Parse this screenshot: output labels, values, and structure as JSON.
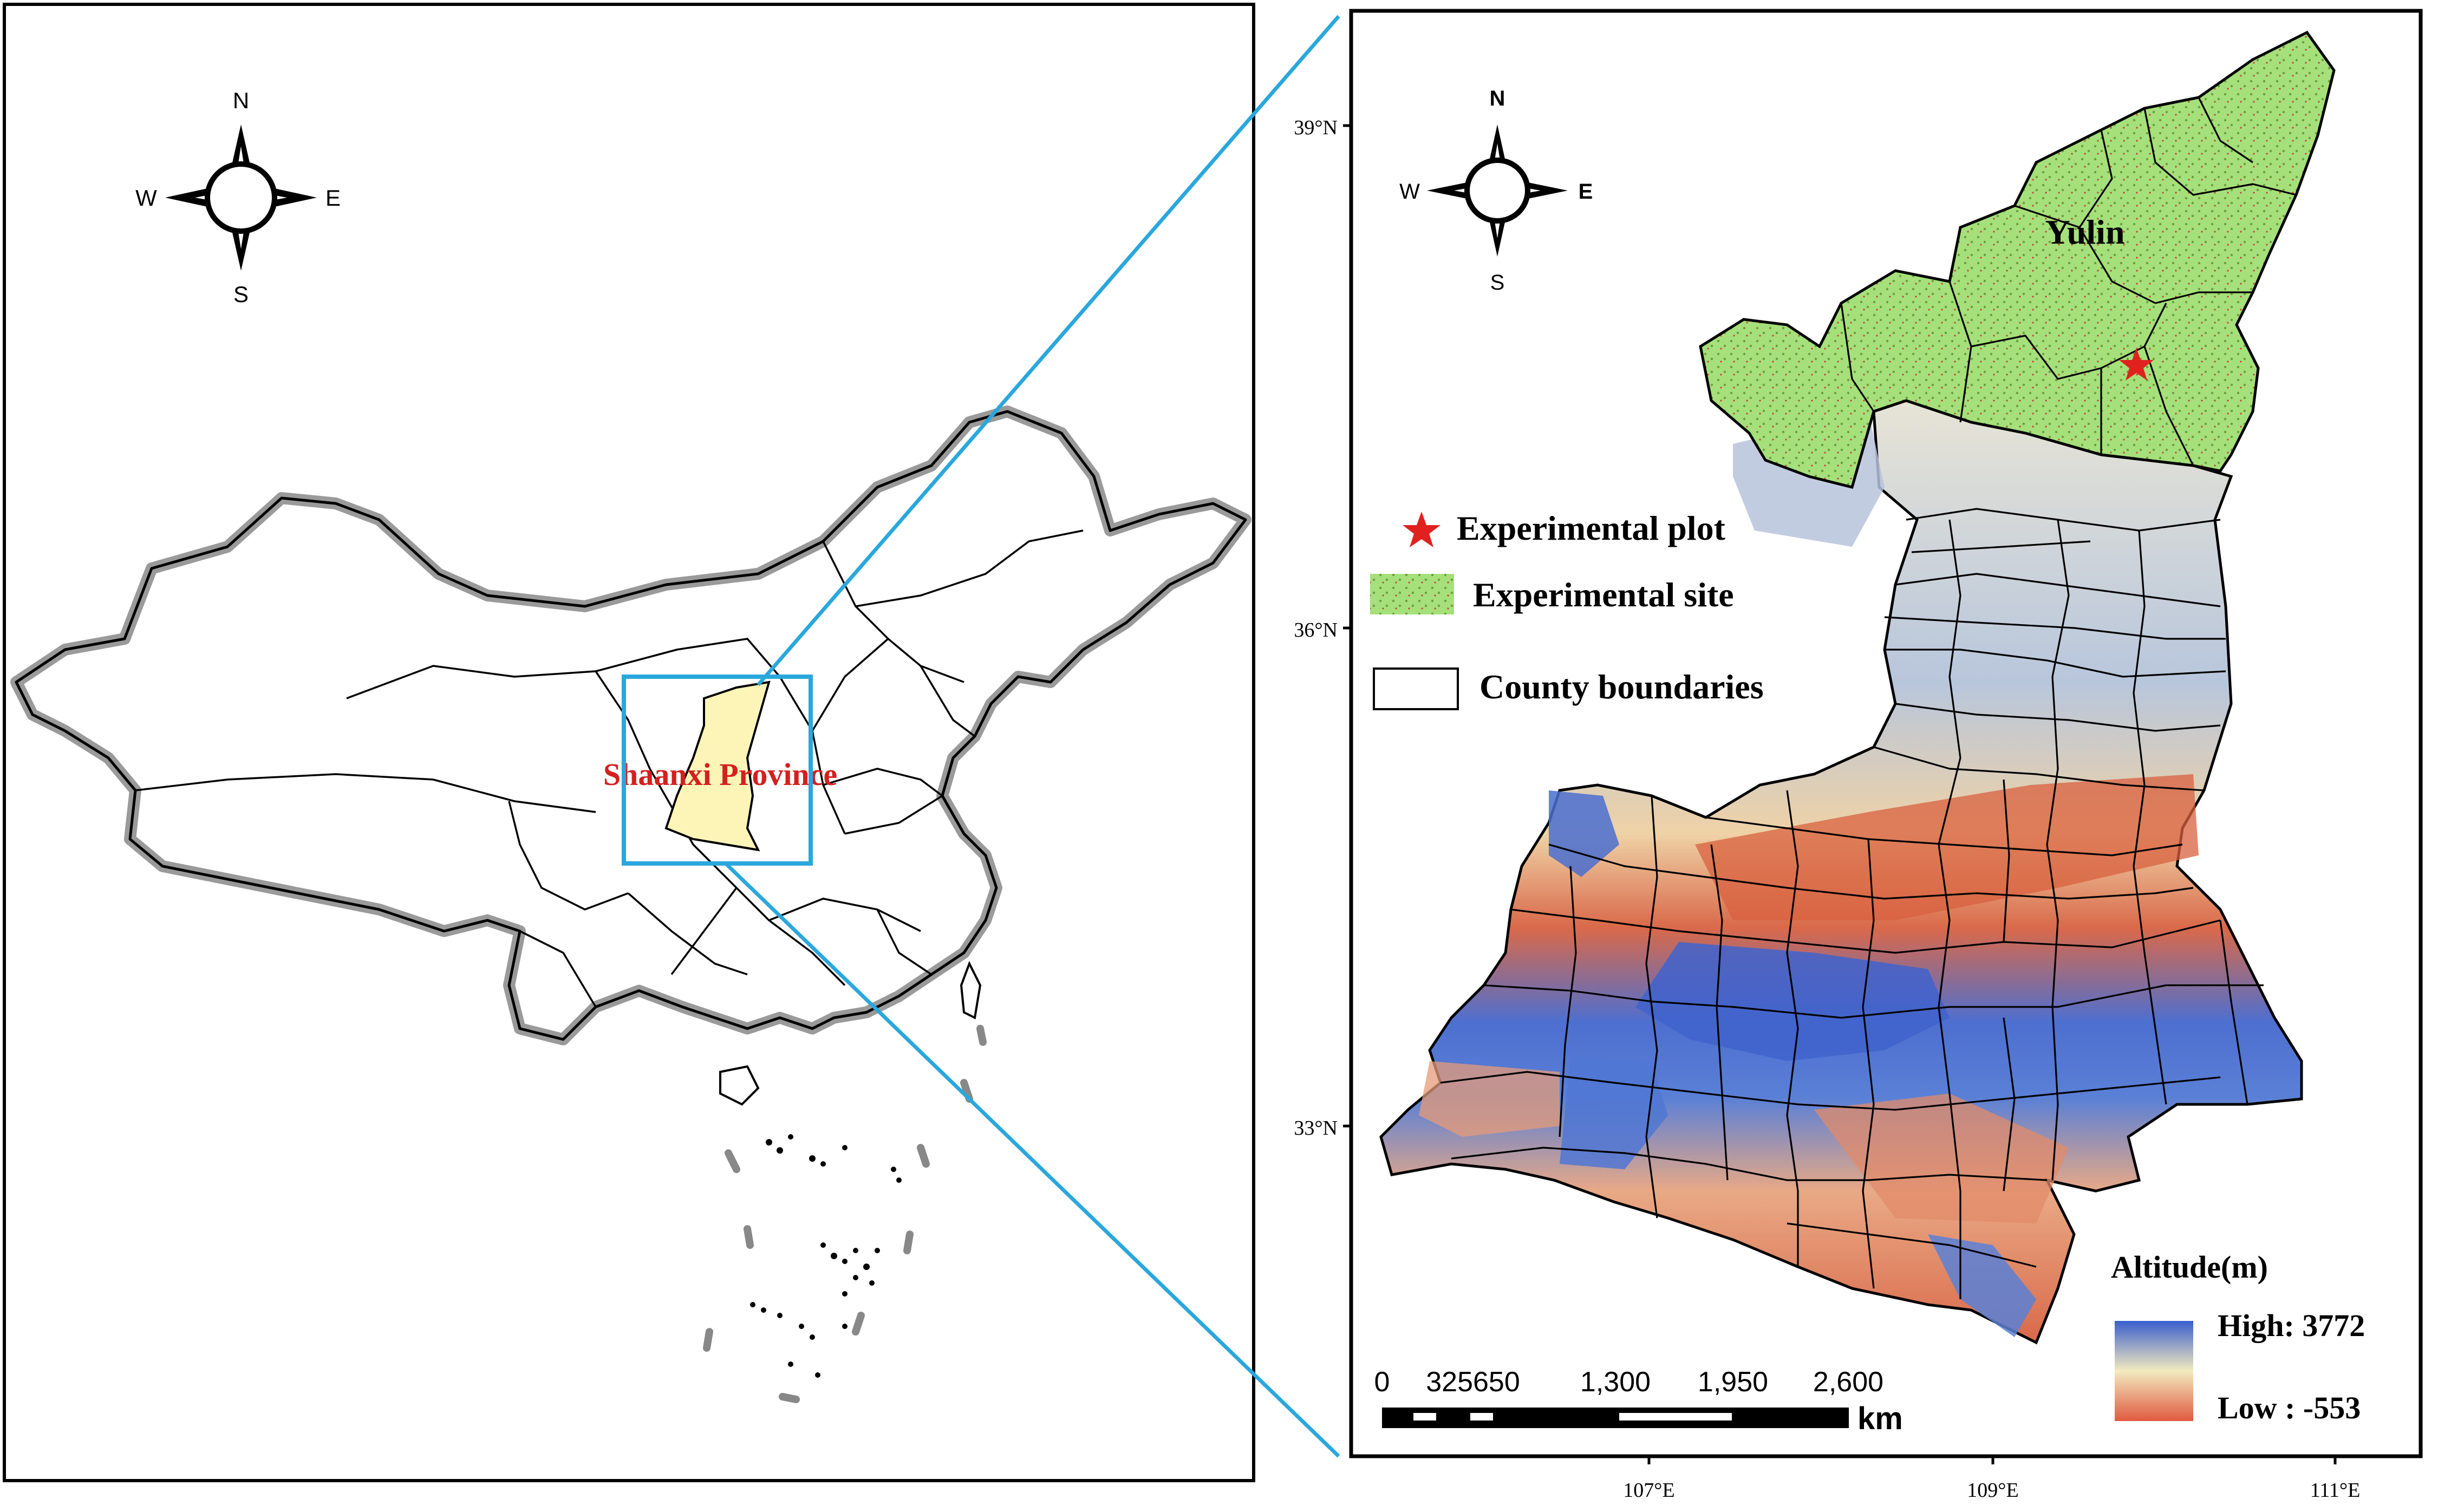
{
  "left_panel": {
    "compass": {
      "n": "N",
      "s": "S",
      "e": "E",
      "w": "W"
    },
    "province_label": "Shaanxi Province"
  },
  "right_panel": {
    "compass": {
      "n": "N",
      "s": "S",
      "e": "E",
      "w": "W"
    },
    "city_label": "Yulin",
    "lat_ticks": [
      "39°N",
      "36°N",
      "33°N"
    ],
    "lon_ticks": [
      "107°E",
      "109°E",
      "111°E"
    ],
    "legend": {
      "plot": "Experimental plot",
      "site": "Experimental site",
      "county": "County boundaries"
    },
    "altitude": {
      "title": "Altitude(m)",
      "high": "High: 3772",
      "low": "Low : -553"
    },
    "scale_bar": {
      "labels": [
        "0",
        "325650",
        "1,300",
        "1,950",
        "2,600"
      ],
      "unit": "km"
    }
  },
  "colors": {
    "inset_box": "#2aa7dc",
    "province_fill": "#fdf5b8",
    "province_label": "#d4201f",
    "site_fill": "#a5e07a",
    "star": "#e0211d",
    "alt_high": "#3a5fcd",
    "alt_mid": "#f3eabf",
    "alt_low": "#e05a40"
  }
}
